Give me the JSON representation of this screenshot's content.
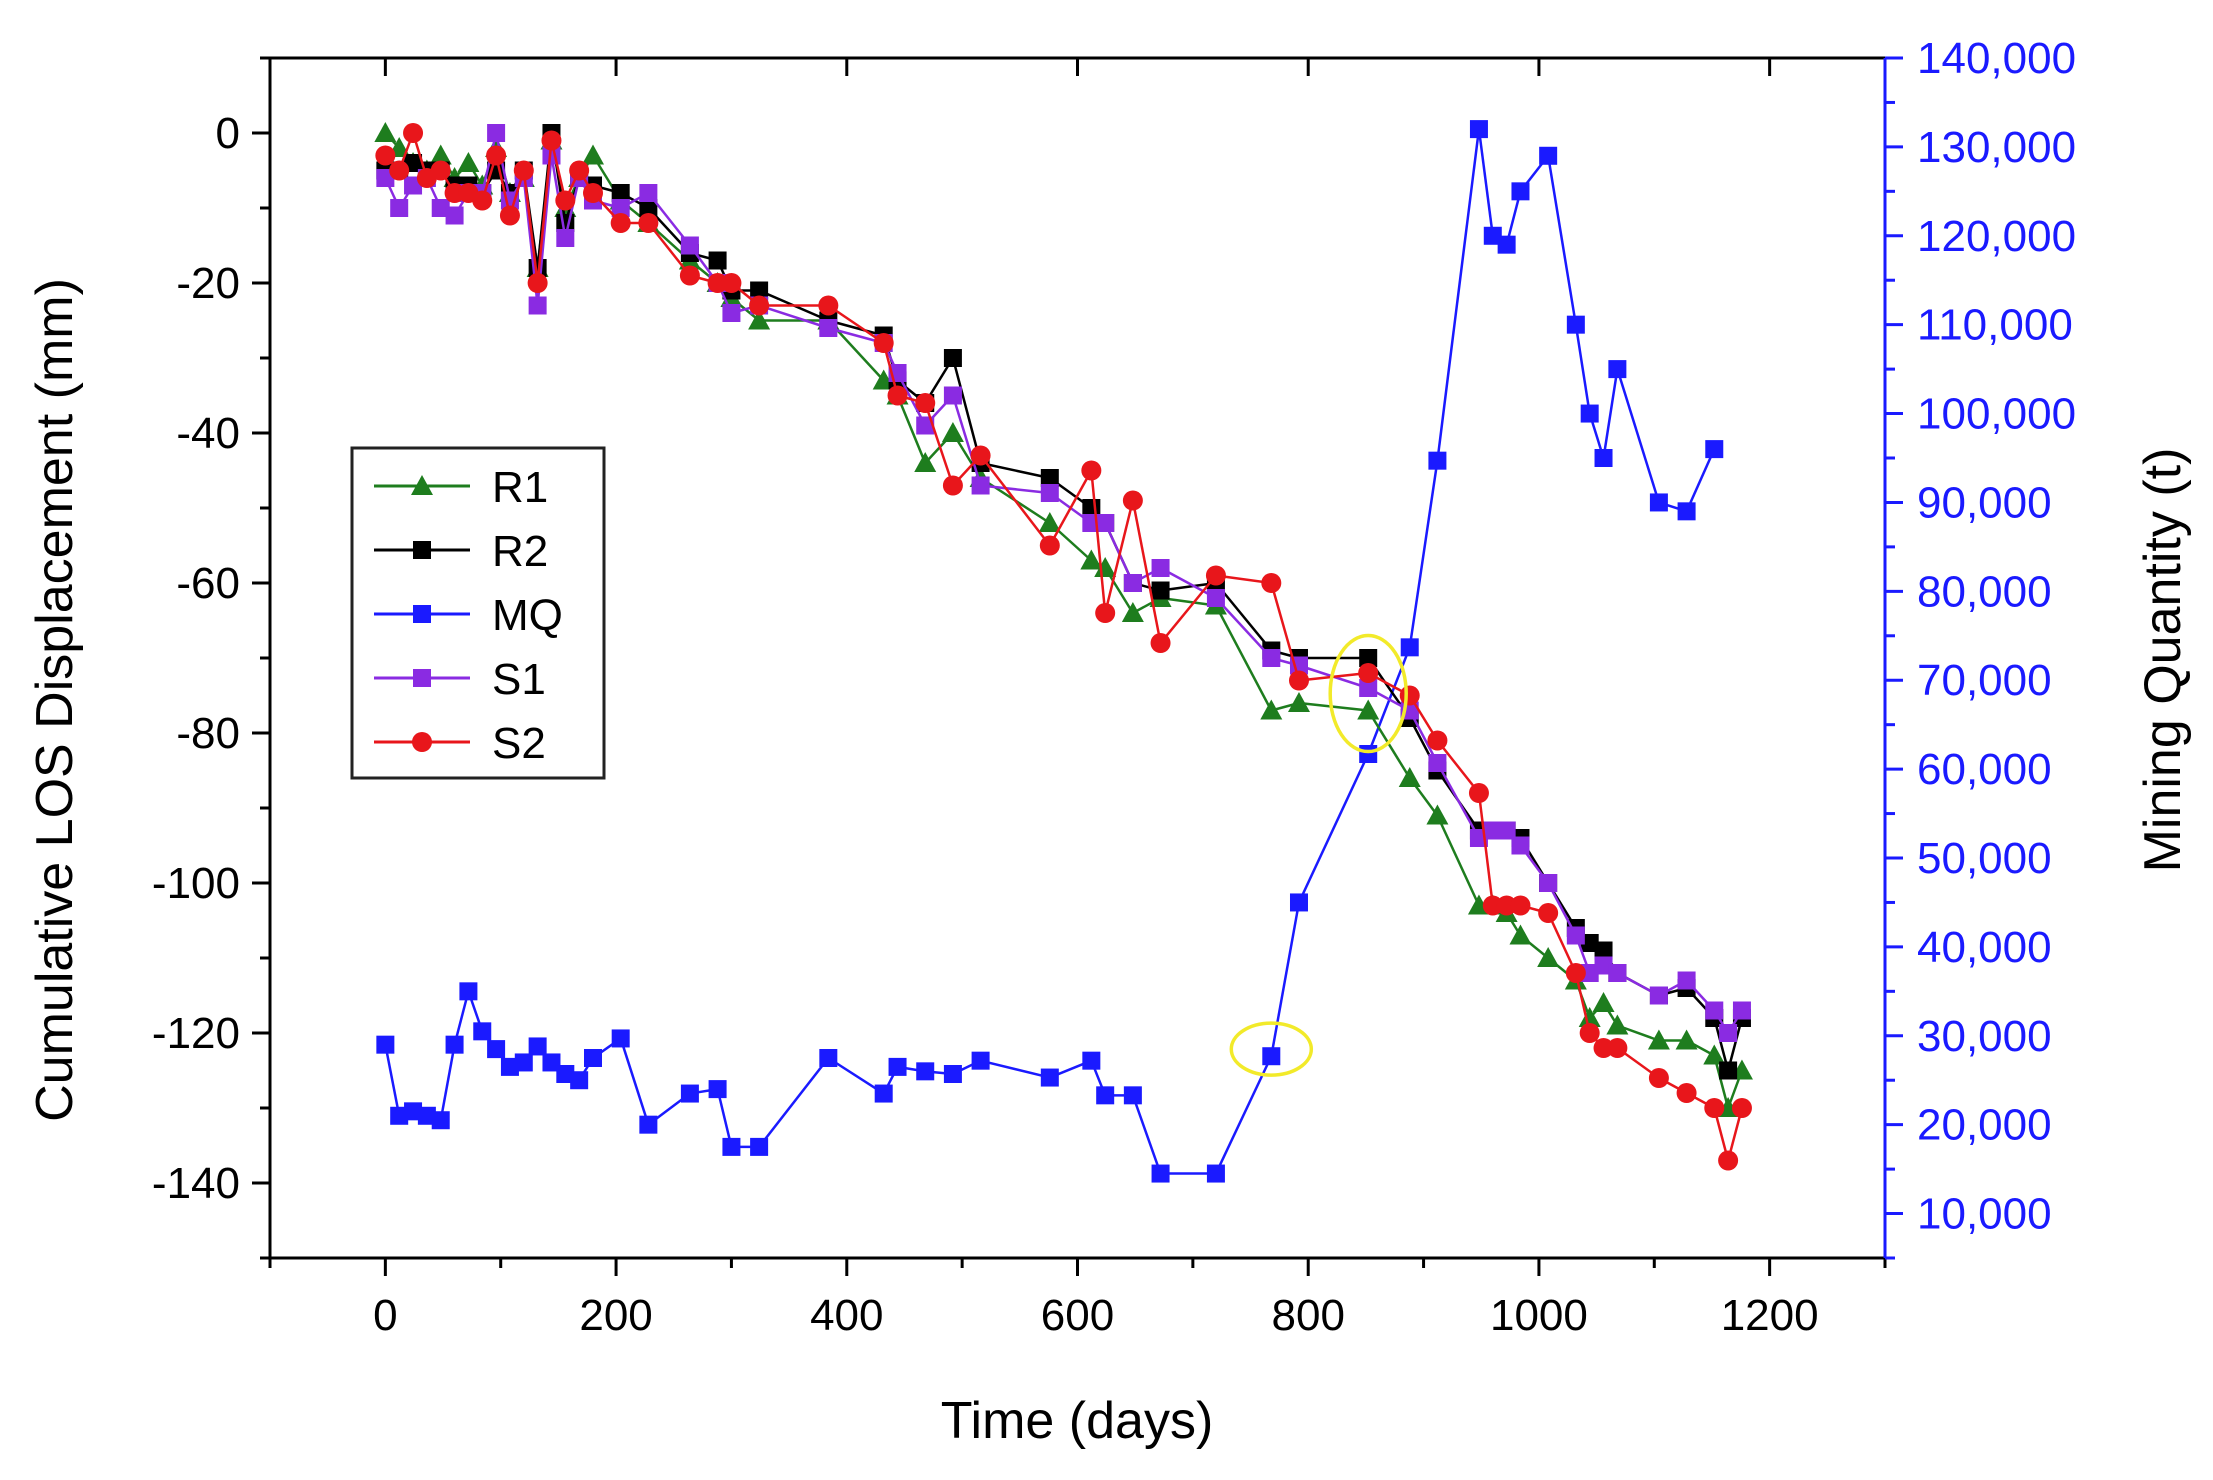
{
  "chart_data": {
    "type": "line",
    "xlabel": "Time (days)",
    "ylabel": "Cumulative LOS Displacement (mm)",
    "y2label": "Mining Quantity (t)",
    "xlim": [
      -100,
      1300
    ],
    "ylim": [
      -150,
      10
    ],
    "y2lim": [
      5000,
      140000
    ],
    "xticks": [
      0,
      200,
      400,
      600,
      800,
      1000,
      1200
    ],
    "yticks": [
      0,
      -20,
      -40,
      -60,
      -80,
      -100,
      -120,
      -140
    ],
    "y2ticks": [
      10000,
      20000,
      30000,
      40000,
      50000,
      60000,
      70000,
      80000,
      90000,
      100000,
      110000,
      120000,
      130000,
      140000
    ],
    "xtick_labels": [
      "0",
      "200",
      "400",
      "600",
      "800",
      "1000",
      "1200"
    ],
    "ytick_labels": [
      "0",
      "-20",
      "-40",
      "-60",
      "-80",
      "-100",
      "-120",
      "-140"
    ],
    "y2tick_labels": [
      "10,000",
      "20,000",
      "30,000",
      "40,000",
      "50,000",
      "60,000",
      "70,000",
      "80,000",
      "90,000",
      "100,000",
      "110,000",
      "120,000",
      "130,000",
      "140,000"
    ],
    "legend_position": "center-left",
    "legend_order": [
      "R1",
      "R2",
      "MQ",
      "S1",
      "S2"
    ],
    "series": [
      {
        "name": "R1",
        "axis": "left",
        "color": "#1e7d1e",
        "marker": "triangle",
        "x": [
          0,
          12,
          24,
          36,
          48,
          60,
          72,
          84,
          96,
          108,
          120,
          132,
          144,
          156,
          168,
          180,
          204,
          228,
          264,
          288,
          300,
          324,
          384,
          432,
          444,
          468,
          492,
          516,
          576,
          612,
          624,
          648,
          672,
          720,
          768,
          792,
          852,
          888,
          912,
          948,
          960,
          972,
          984,
          1008,
          1032,
          1044,
          1056,
          1068,
          1104,
          1128,
          1152,
          1164,
          1176
        ],
        "y": [
          0,
          -2,
          -4,
          -5,
          -3,
          -6,
          -4,
          -7,
          -2,
          -8,
          -6,
          -18,
          -1,
          -10,
          -6,
          -3,
          -9,
          -12,
          -17,
          -20,
          -22,
          -25,
          -25,
          -33,
          -35,
          -44,
          -40,
          -46,
          -52,
          -57,
          -58,
          -64,
          -62,
          -63,
          -77,
          -76,
          -77,
          -86,
          -91,
          -103,
          -103,
          -104,
          -107,
          -110,
          -113,
          -118,
          -116,
          -119,
          -121,
          -121,
          -123,
          -130,
          -125
        ]
      },
      {
        "name": "R2",
        "axis": "left",
        "color": "#000000",
        "marker": "square",
        "x": [
          0,
          12,
          24,
          36,
          48,
          60,
          72,
          84,
          96,
          108,
          120,
          132,
          144,
          156,
          168,
          180,
          204,
          228,
          264,
          288,
          300,
          324,
          384,
          432,
          444,
          468,
          492,
          516,
          576,
          612,
          624,
          648,
          672,
          720,
          768,
          792,
          852,
          888,
          912,
          948,
          960,
          972,
          984,
          1008,
          1032,
          1044,
          1056,
          1068,
          1104,
          1128,
          1152,
          1164,
          1176
        ],
        "y": [
          -5,
          -5,
          -4,
          -5,
          -5,
          -7,
          -7,
          -8,
          -5,
          -8,
          -5,
          -18,
          0,
          -12,
          -6,
          -7,
          -8,
          -10,
          -16,
          -17,
          -21,
          -21,
          -25,
          -27,
          -33,
          -36,
          -30,
          -44,
          -46,
          -50,
          -52,
          -60,
          -61,
          -60,
          -69,
          -70,
          -70,
          -78,
          -85,
          -93,
          -93,
          -93,
          -94,
          -100,
          -106,
          -108,
          -109,
          -112,
          -115,
          -114,
          -118,
          -125,
          -118
        ]
      },
      {
        "name": "S1",
        "axis": "left",
        "color": "#8a2be2",
        "marker": "square",
        "x": [
          0,
          12,
          24,
          36,
          48,
          60,
          72,
          84,
          96,
          108,
          120,
          132,
          144,
          156,
          168,
          180,
          204,
          228,
          264,
          288,
          300,
          324,
          384,
          432,
          444,
          468,
          492,
          516,
          576,
          612,
          624,
          648,
          672,
          720,
          768,
          792,
          852,
          888,
          912,
          948,
          960,
          972,
          984,
          1008,
          1032,
          1044,
          1056,
          1068,
          1104,
          1128,
          1152,
          1164,
          1176
        ],
        "y": [
          -6,
          -10,
          -7,
          -6,
          -10,
          -11,
          -8,
          -8,
          0,
          -9,
          -6,
          -23,
          -3,
          -14,
          -6,
          -9,
          -10,
          -8,
          -15,
          -20,
          -24,
          -23,
          -26,
          -28,
          -32,
          -39,
          -35,
          -47,
          -48,
          -52,
          -52,
          -60,
          -58,
          -62,
          -70,
          -71,
          -74,
          -77,
          -84,
          -94,
          -93,
          -93,
          -95,
          -100,
          -107,
          -112,
          -111,
          -112,
          -115,
          -113,
          -117,
          -120,
          -117
        ]
      },
      {
        "name": "S2",
        "axis": "left",
        "color": "#e8161b",
        "marker": "circle",
        "x": [
          0,
          12,
          24,
          36,
          48,
          60,
          72,
          84,
          96,
          108,
          120,
          132,
          144,
          156,
          168,
          180,
          204,
          228,
          264,
          288,
          300,
          324,
          384,
          432,
          444,
          468,
          492,
          516,
          576,
          612,
          624,
          648,
          672,
          720,
          768,
          792,
          852,
          888,
          912,
          948,
          960,
          972,
          984,
          1008,
          1032,
          1044,
          1056,
          1068,
          1104,
          1128,
          1152,
          1164,
          1176
        ],
        "y": [
          -3,
          -5,
          0,
          -6,
          -5,
          -8,
          -8,
          -9,
          -3,
          -11,
          -5,
          -20,
          -1,
          -9,
          -5,
          -8,
          -12,
          -12,
          -19,
          -20,
          -20,
          -23,
          -23,
          -28,
          -35,
          -36,
          -47,
          -43,
          -55,
          -45,
          -64,
          -49,
          -68,
          -59,
          -60,
          -73,
          -72,
          -75,
          -81,
          -88,
          -103,
          -103,
          -103,
          -104,
          -112,
          -120,
          -122,
          -122,
          -126,
          -128,
          -130,
          -137,
          -130
        ]
      },
      {
        "name": "MQ",
        "axis": "right",
        "color": "#1a1aff",
        "marker": "square",
        "x": [
          0,
          12,
          24,
          36,
          48,
          60,
          72,
          84,
          96,
          108,
          120,
          132,
          144,
          156,
          168,
          180,
          204,
          228,
          264,
          288,
          300,
          324,
          384,
          432,
          444,
          468,
          492,
          516,
          576,
          612,
          624,
          648,
          672,
          720,
          768,
          792,
          852,
          888,
          912,
          948,
          960,
          972,
          984,
          1008,
          1032,
          1044,
          1056,
          1068,
          1104,
          1128,
          1152
        ],
        "y": [
          29000,
          21000,
          21500,
          21000,
          20500,
          29000,
          35000,
          30500,
          28500,
          26500,
          27000,
          28800,
          27000,
          25700,
          25000,
          27500,
          29700,
          20000,
          23500,
          24000,
          17500,
          17500,
          27500,
          23500,
          26500,
          26000,
          25700,
          27200,
          25300,
          27200,
          23300,
          23300,
          14500,
          14500,
          27700,
          45000,
          61700,
          73700,
          94700,
          132000,
          120000,
          119000,
          125000,
          129000,
          110000,
          100000,
          95000,
          105000,
          90000,
          89000,
          96000
        ]
      }
    ],
    "annotations": [
      {
        "type": "ellipse",
        "color": "#f2ea2a",
        "x": 768,
        "y2": 28500
      },
      {
        "type": "ellipse",
        "color": "#f2ea2a",
        "x": 852,
        "y2": 68500
      }
    ]
  }
}
